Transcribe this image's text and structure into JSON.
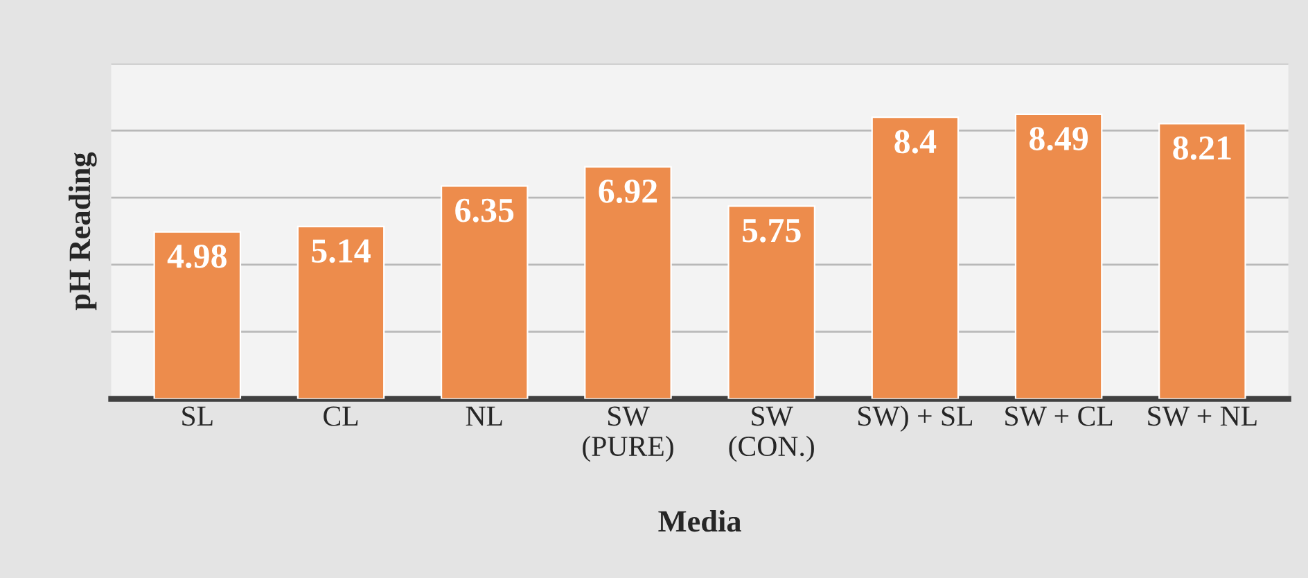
{
  "chart_data": {
    "type": "bar",
    "xlabel": "Media",
    "ylabel": "pH Reading",
    "categories": [
      "SL",
      "CL",
      "NL",
      "SW\n(PURE)",
      "SW\n(CON.)",
      "SW) + SL",
      "SW + CL",
      "SW + NL"
    ],
    "values": [
      4.98,
      5.14,
      6.35,
      6.92,
      5.75,
      8.4,
      8.49,
      8.21
    ],
    "color": "#ed8c4c",
    "ylim": [
      0,
      10
    ],
    "yticks": [
      {
        "value": 0,
        "label": null
      },
      {
        "value": 2,
        "label": null
      },
      {
        "value": 4,
        "label": null
      },
      {
        "value": 6,
        "label": null
      },
      {
        "value": 8,
        "label": null
      },
      {
        "value": 10,
        "label": null
      }
    ],
    "grid": "y",
    "data_labels": true
  }
}
